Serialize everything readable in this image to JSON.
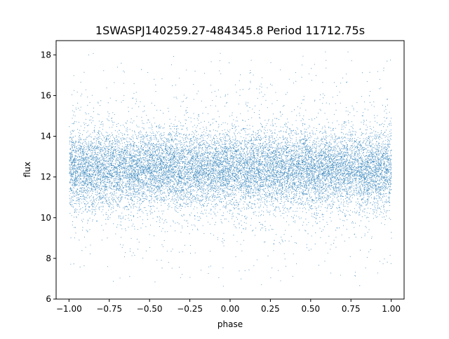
{
  "chart_data": {
    "type": "scatter",
    "title": "1SWASPJ140259.27-484345.8 Period 11712.75s",
    "xlabel": "phase",
    "ylabel": "flux",
    "xlim": [
      -1.08,
      1.08
    ],
    "ylim": [
      6.0,
      18.7
    ],
    "x_ticks": [
      -1.0,
      -0.75,
      -0.5,
      -0.25,
      0.0,
      0.25,
      0.5,
      0.75,
      1.0
    ],
    "x_tick_labels": [
      "−1.00",
      "−0.75",
      "−0.50",
      "−0.25",
      "0.00",
      "0.25",
      "0.50",
      "0.75",
      "1.00"
    ],
    "y_ticks": [
      6,
      8,
      10,
      12,
      14,
      16,
      18
    ],
    "y_tick_labels": [
      "6",
      "8",
      "10",
      "12",
      "14",
      "16",
      "18"
    ],
    "grid": false,
    "legend": "none",
    "series": [
      {
        "color": "#1f77b4",
        "x_range": [
          -1.0,
          1.0
        ],
        "center_flux": 12.4,
        "core_band": [
          10.5,
          14.3
        ],
        "outlier_range": [
          6.6,
          18.2
        ]
      }
    ]
  }
}
